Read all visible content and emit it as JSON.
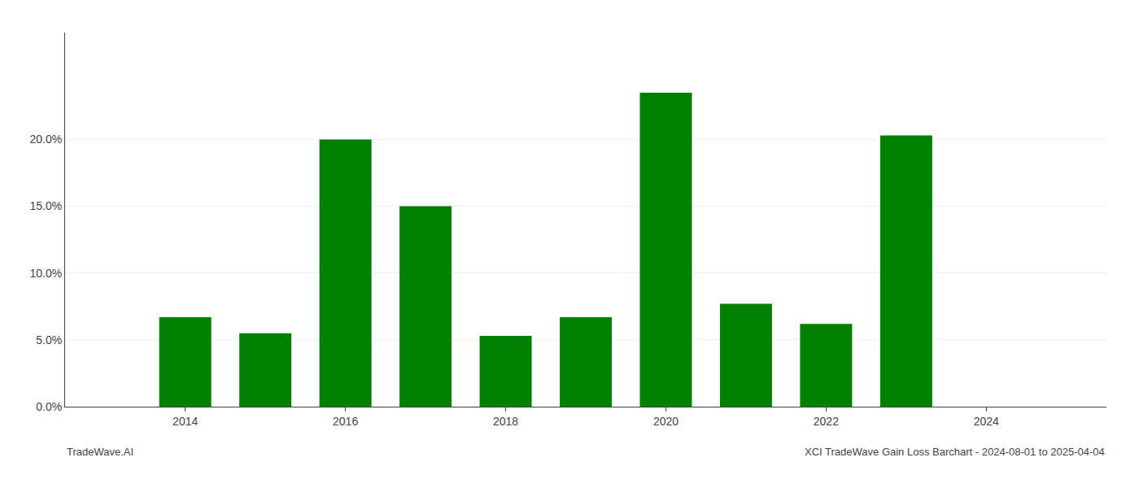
{
  "chart_data": {
    "type": "bar",
    "x": [
      2014,
      2015,
      2016,
      2017,
      2018,
      2019,
      2020,
      2021,
      2022,
      2023
    ],
    "values": [
      0.067,
      0.055,
      0.2,
      0.15,
      0.053,
      0.067,
      0.235,
      0.077,
      0.062,
      0.203
    ],
    "color": "#008000",
    "xlim": [
      2012.5,
      2025.5
    ],
    "xticks": [
      2014,
      2016,
      2018,
      2020,
      2022,
      2024
    ],
    "ylim": [
      0,
      0.28
    ],
    "yticks": [
      {
        "value": 0.0,
        "label": "0.0%"
      },
      {
        "value": 0.05,
        "label": "5.0%"
      },
      {
        "value": 0.1,
        "label": "10.0%"
      },
      {
        "value": 0.15,
        "label": "15.0%"
      },
      {
        "value": 0.2,
        "label": "20.0%"
      }
    ],
    "grid": "y",
    "annotations": [
      "TradeWave.AI",
      "XCI TradeWave Gain Loss Barchart - 2024-08-01 to 2025-04-04"
    ]
  }
}
